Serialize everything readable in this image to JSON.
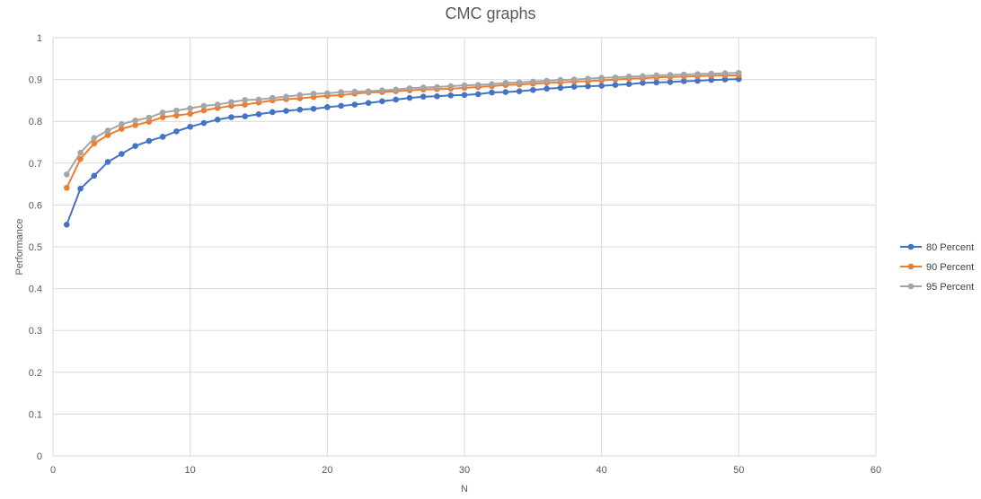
{
  "chart_data": {
    "type": "line",
    "title": "CMC graphs",
    "xlabel": "N",
    "ylabel": "Performance",
    "xlim": [
      0,
      60
    ],
    "ylim": [
      0,
      1
    ],
    "x_ticks": [
      0,
      10,
      20,
      30,
      40,
      50,
      60
    ],
    "y_ticks": [
      0,
      0.1,
      0.2,
      0.3,
      0.4,
      0.5,
      0.6,
      0.7,
      0.8,
      0.9,
      1
    ],
    "grid": true,
    "legend_position": "right",
    "x": [
      1,
      2,
      3,
      4,
      5,
      6,
      7,
      8,
      9,
      10,
      11,
      12,
      13,
      14,
      15,
      16,
      17,
      18,
      19,
      20,
      21,
      22,
      23,
      24,
      25,
      26,
      27,
      28,
      29,
      30,
      31,
      32,
      33,
      34,
      35,
      36,
      37,
      38,
      39,
      40,
      41,
      42,
      43,
      44,
      45,
      46,
      47,
      48,
      49,
      50
    ],
    "series": [
      {
        "name": "80 Percent",
        "color": "#4472C4",
        "values": [
          0.553,
          0.639,
          0.67,
          0.703,
          0.722,
          0.741,
          0.753,
          0.763,
          0.776,
          0.787,
          0.796,
          0.804,
          0.81,
          0.812,
          0.817,
          0.822,
          0.825,
          0.828,
          0.83,
          0.834,
          0.837,
          0.84,
          0.844,
          0.848,
          0.852,
          0.856,
          0.859,
          0.86,
          0.862,
          0.863,
          0.865,
          0.869,
          0.87,
          0.872,
          0.875,
          0.878,
          0.88,
          0.883,
          0.884,
          0.885,
          0.887,
          0.889,
          0.892,
          0.893,
          0.894,
          0.896,
          0.897,
          0.899,
          0.9,
          0.901
        ]
      },
      {
        "name": "90 Percent",
        "color": "#ED7D31",
        "values": [
          0.641,
          0.71,
          0.747,
          0.767,
          0.782,
          0.791,
          0.799,
          0.81,
          0.814,
          0.818,
          0.826,
          0.832,
          0.837,
          0.84,
          0.845,
          0.85,
          0.853,
          0.855,
          0.858,
          0.861,
          0.863,
          0.866,
          0.869,
          0.87,
          0.872,
          0.874,
          0.876,
          0.877,
          0.878,
          0.88,
          0.882,
          0.884,
          0.887,
          0.888,
          0.89,
          0.892,
          0.893,
          0.895,
          0.896,
          0.898,
          0.9,
          0.902,
          0.903,
          0.905,
          0.906,
          0.907,
          0.908,
          0.909,
          0.91,
          0.91
        ]
      },
      {
        "name": "95 Percent",
        "color": "#A5A5A5",
        "values": [
          0.673,
          0.725,
          0.76,
          0.778,
          0.793,
          0.802,
          0.809,
          0.821,
          0.826,
          0.831,
          0.837,
          0.84,
          0.846,
          0.851,
          0.852,
          0.856,
          0.859,
          0.863,
          0.866,
          0.867,
          0.87,
          0.871,
          0.872,
          0.874,
          0.876,
          0.879,
          0.881,
          0.882,
          0.884,
          0.886,
          0.887,
          0.889,
          0.892,
          0.893,
          0.895,
          0.897,
          0.899,
          0.9,
          0.902,
          0.904,
          0.905,
          0.907,
          0.908,
          0.91,
          0.911,
          0.912,
          0.913,
          0.914,
          0.915,
          0.916
        ]
      }
    ]
  }
}
